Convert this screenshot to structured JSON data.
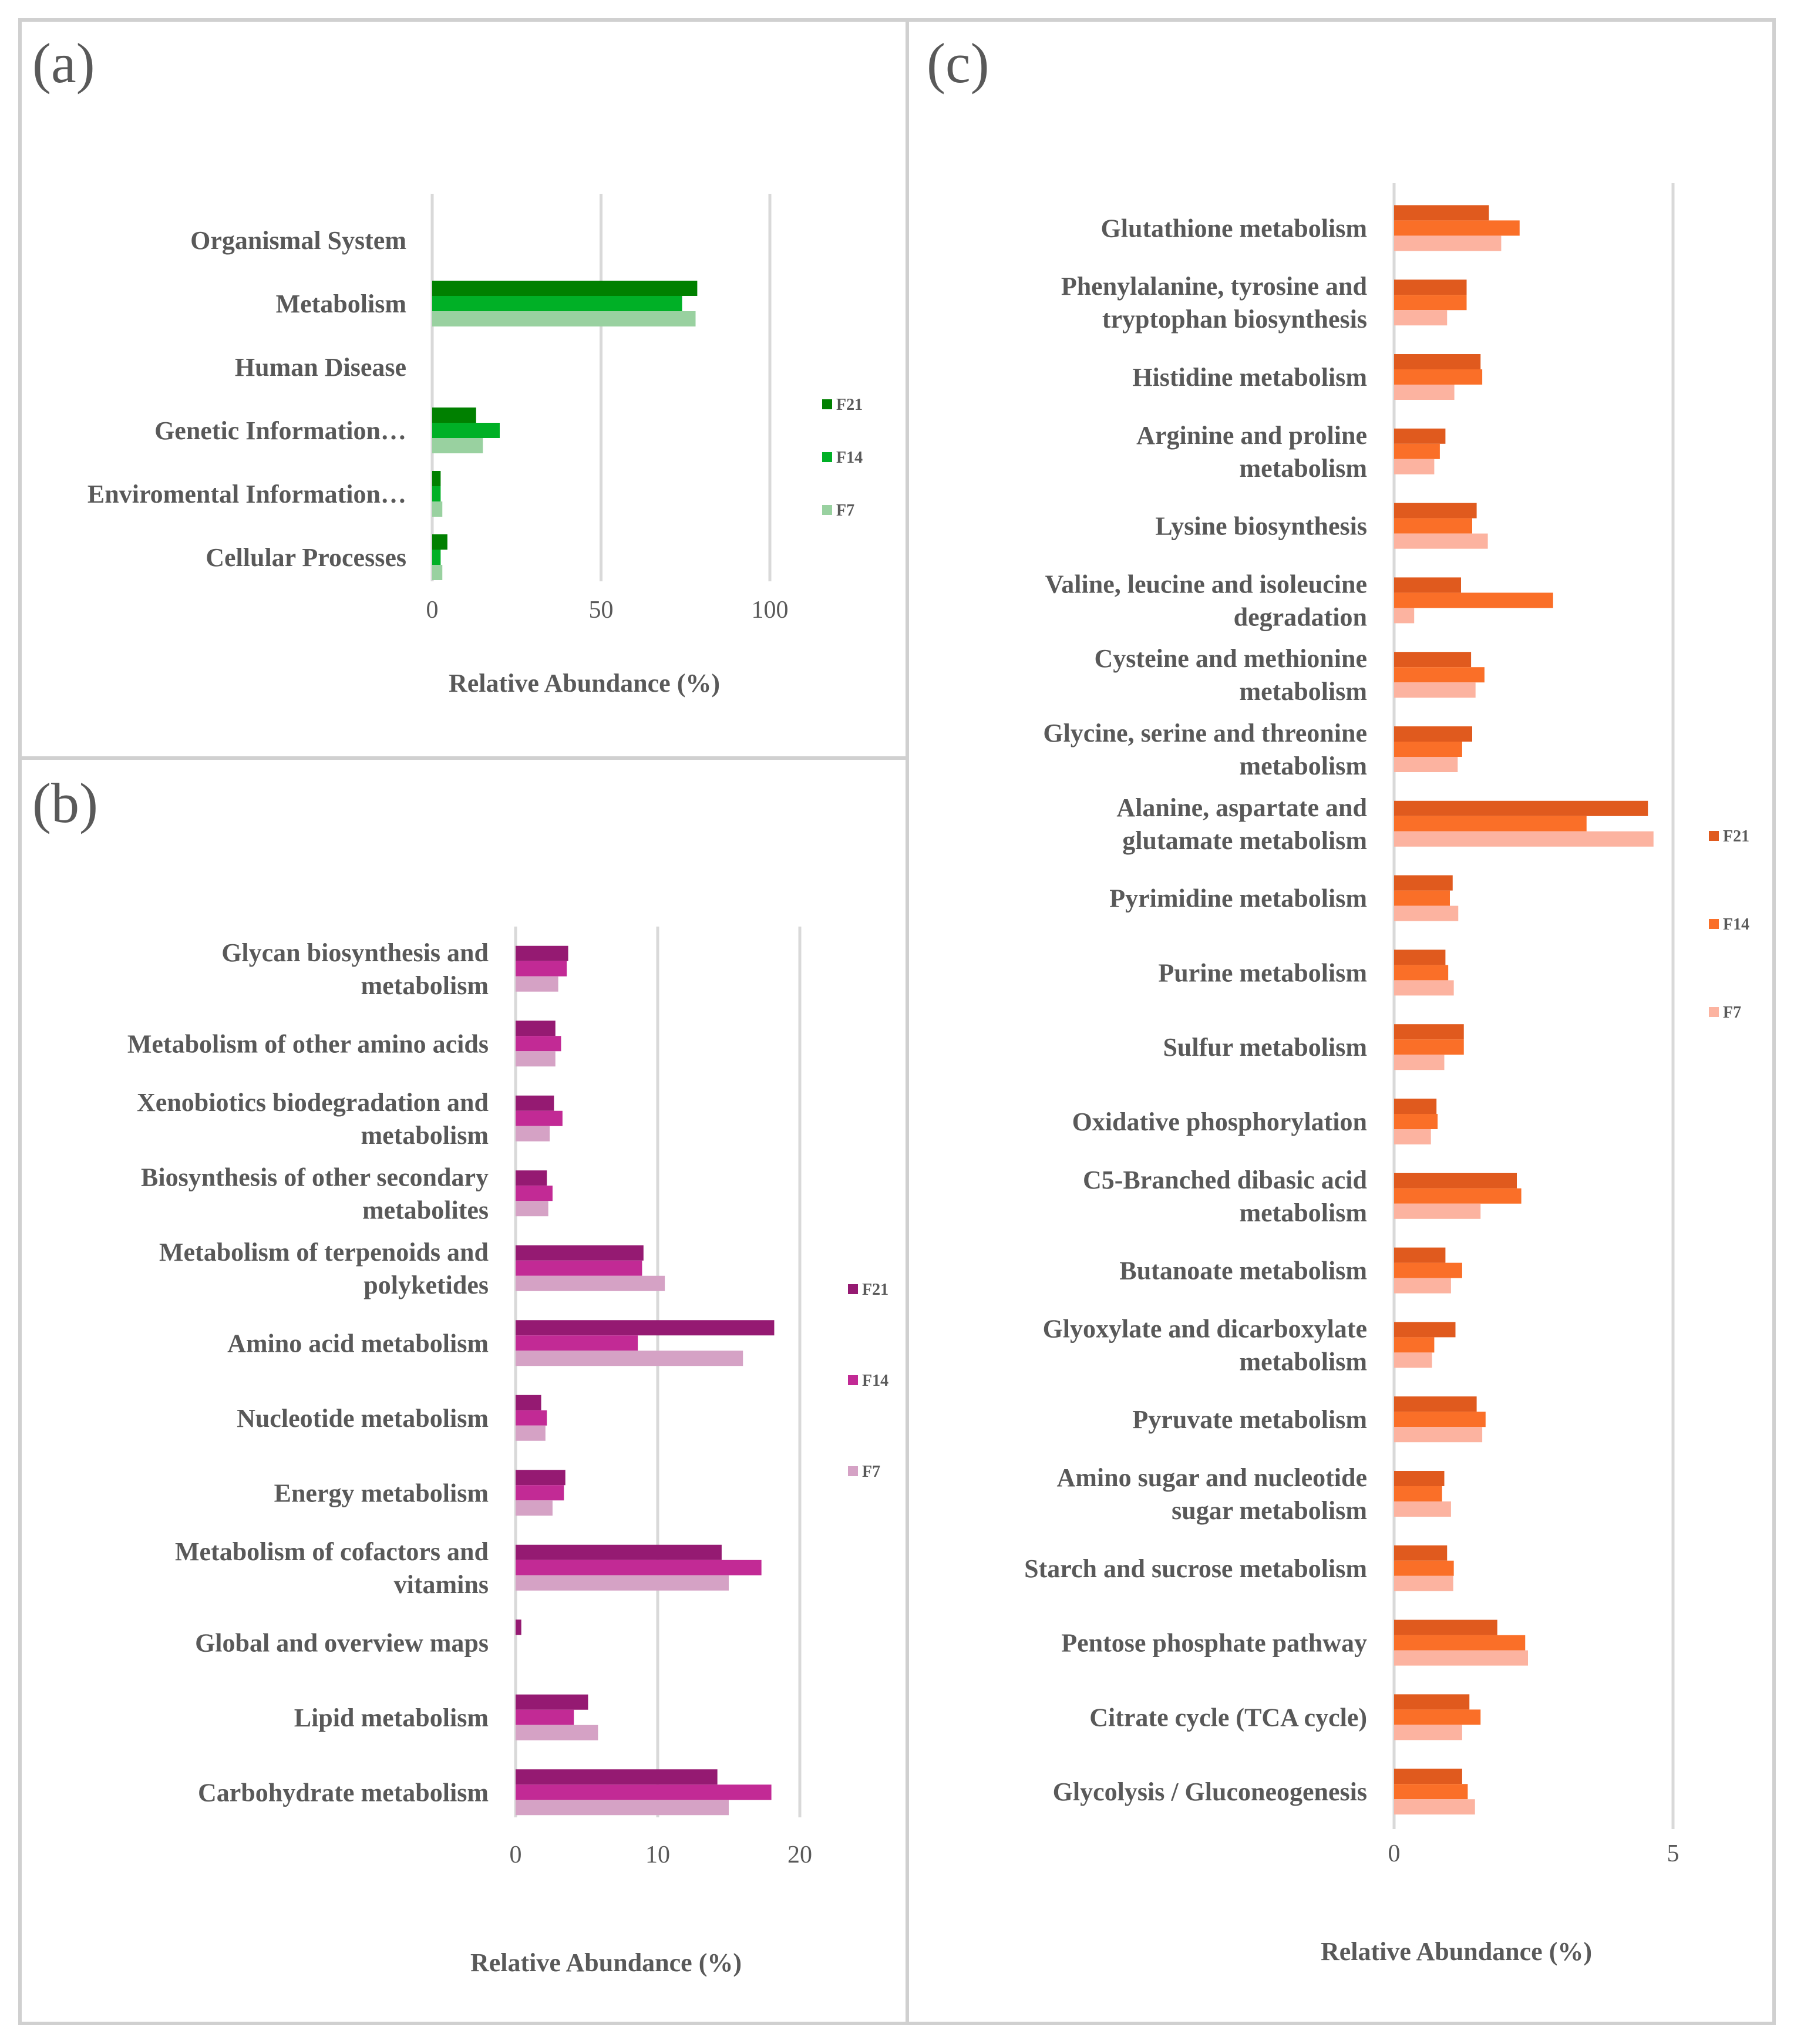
{
  "panels": {
    "a": "(a)",
    "b": "(b)",
    "c": "(c)"
  },
  "chart_data": [
    {
      "id": "a",
      "type": "bar",
      "orientation": "horizontal",
      "categories": [
        "Organismal System",
        "Metabolism",
        "Human Disease",
        "Genetic Information…",
        "Enviromental Information…",
        "Cellular Processes"
      ],
      "series": [
        {
          "name": "F21",
          "color": "#008000",
          "values": [
            0,
            78.5,
            0,
            13,
            2.5,
            4.5
          ]
        },
        {
          "name": "F14",
          "color": "#00b026",
          "values": [
            0,
            74,
            0,
            20,
            2.5,
            2.5
          ]
        },
        {
          "name": "F7",
          "color": "#99d1a0",
          "values": [
            0,
            78,
            0,
            15,
            3,
            3
          ]
        }
      ],
      "xlabel": "Relative Abundance (%)",
      "xlim": [
        0,
        100
      ],
      "xticks": [
        0,
        50,
        100
      ],
      "legend": "right"
    },
    {
      "id": "b",
      "type": "bar",
      "orientation": "horizontal",
      "categories": [
        "Glycan biosynthesis and\nmetabolism",
        "Metabolism of other amino acids",
        "Xenobiotics biodegradation and\nmetabolism",
        "Biosynthesis of other secondary\nmetabolites",
        "Metabolism of terpenoids and\npolyketides",
        "Amino acid metabolism",
        "Nucleotide metabolism",
        "Energy metabolism",
        "Metabolism of cofactors and\nvitamins",
        "Global and overview maps",
        "Lipid metabolism",
        "Carbohydrate metabolism"
      ],
      "series": [
        {
          "name": "F21",
          "color": "#951a72",
          "values": [
            3.7,
            2.8,
            2.7,
            2.2,
            9.0,
            18.2,
            1.8,
            3.5,
            14.5,
            0.4,
            5.1,
            14.2
          ]
        },
        {
          "name": "F14",
          "color": "#c22a95",
          "values": [
            3.6,
            3.2,
            3.3,
            2.6,
            8.9,
            8.6,
            2.2,
            3.4,
            17.3,
            0,
            4.1,
            18.0
          ]
        },
        {
          "name": "F7",
          "color": "#d5a2c5",
          "values": [
            3.0,
            2.8,
            2.4,
            2.3,
            10.5,
            16.0,
            2.1,
            2.6,
            15.0,
            0,
            5.8,
            15.0
          ]
        }
      ],
      "xlabel": "Relative Abundance (%)",
      "xlim": [
        0,
        20
      ],
      "xticks": [
        0,
        10,
        20
      ],
      "legend": "right"
    },
    {
      "id": "c",
      "type": "bar",
      "orientation": "horizontal",
      "categories": [
        "Glutathione metabolism",
        "Phenylalanine, tyrosine and\ntryptophan biosynthesis",
        "Histidine metabolism",
        "Arginine and proline\nmetabolism",
        "Lysine biosynthesis",
        "Valine, leucine and isoleucine\ndegradation",
        "Cysteine and methionine\nmetabolism",
        "Glycine, serine and threonine\nmetabolism",
        "Alanine, aspartate and\nglutamate metabolism",
        "Pyrimidine metabolism",
        "Purine metabolism",
        "Sulfur metabolism",
        "Oxidative phosphorylation",
        "C5-Branched dibasic acid\nmetabolism",
        "Butanoate metabolism",
        "Glyoxylate and dicarboxylate\nmetabolism",
        "Pyruvate metabolism",
        "Amino sugar and nucleotide\nsugar metabolism",
        "Starch and sucrose metabolism",
        "Pentose phosphate pathway",
        "Citrate cycle (TCA cycle)",
        "Glycolysis / Gluconeogenesis"
      ],
      "series": [
        {
          "name": "F21",
          "color": "#e05a1e",
          "values": [
            1.7,
            1.3,
            1.55,
            0.92,
            1.48,
            1.2,
            1.38,
            1.4,
            4.55,
            1.05,
            0.92,
            1.25,
            0.76,
            2.2,
            0.92,
            1.1,
            1.48,
            0.9,
            0.95,
            1.85,
            1.35,
            1.22
          ]
        },
        {
          "name": "F14",
          "color": "#fa6f28",
          "values": [
            2.25,
            1.3,
            1.58,
            0.82,
            1.4,
            2.85,
            1.62,
            1.22,
            3.45,
            1.0,
            0.97,
            1.25,
            0.78,
            2.28,
            1.22,
            0.72,
            1.64,
            0.86,
            1.07,
            2.35,
            1.55,
            1.32
          ]
        },
        {
          "name": "F7",
          "color": "#fcb3a0",
          "values": [
            1.92,
            0.95,
            1.08,
            0.72,
            1.68,
            0.36,
            1.46,
            1.14,
            4.65,
            1.15,
            1.07,
            0.9,
            0.66,
            1.55,
            1.02,
            0.68,
            1.58,
            1.02,
            1.06,
            2.4,
            1.22,
            1.45
          ]
        }
      ],
      "xlabel": "Relative Abundance (%)",
      "xlim": [
        0,
        5
      ],
      "xticks": [
        0,
        5
      ],
      "legend": "right"
    }
  ]
}
